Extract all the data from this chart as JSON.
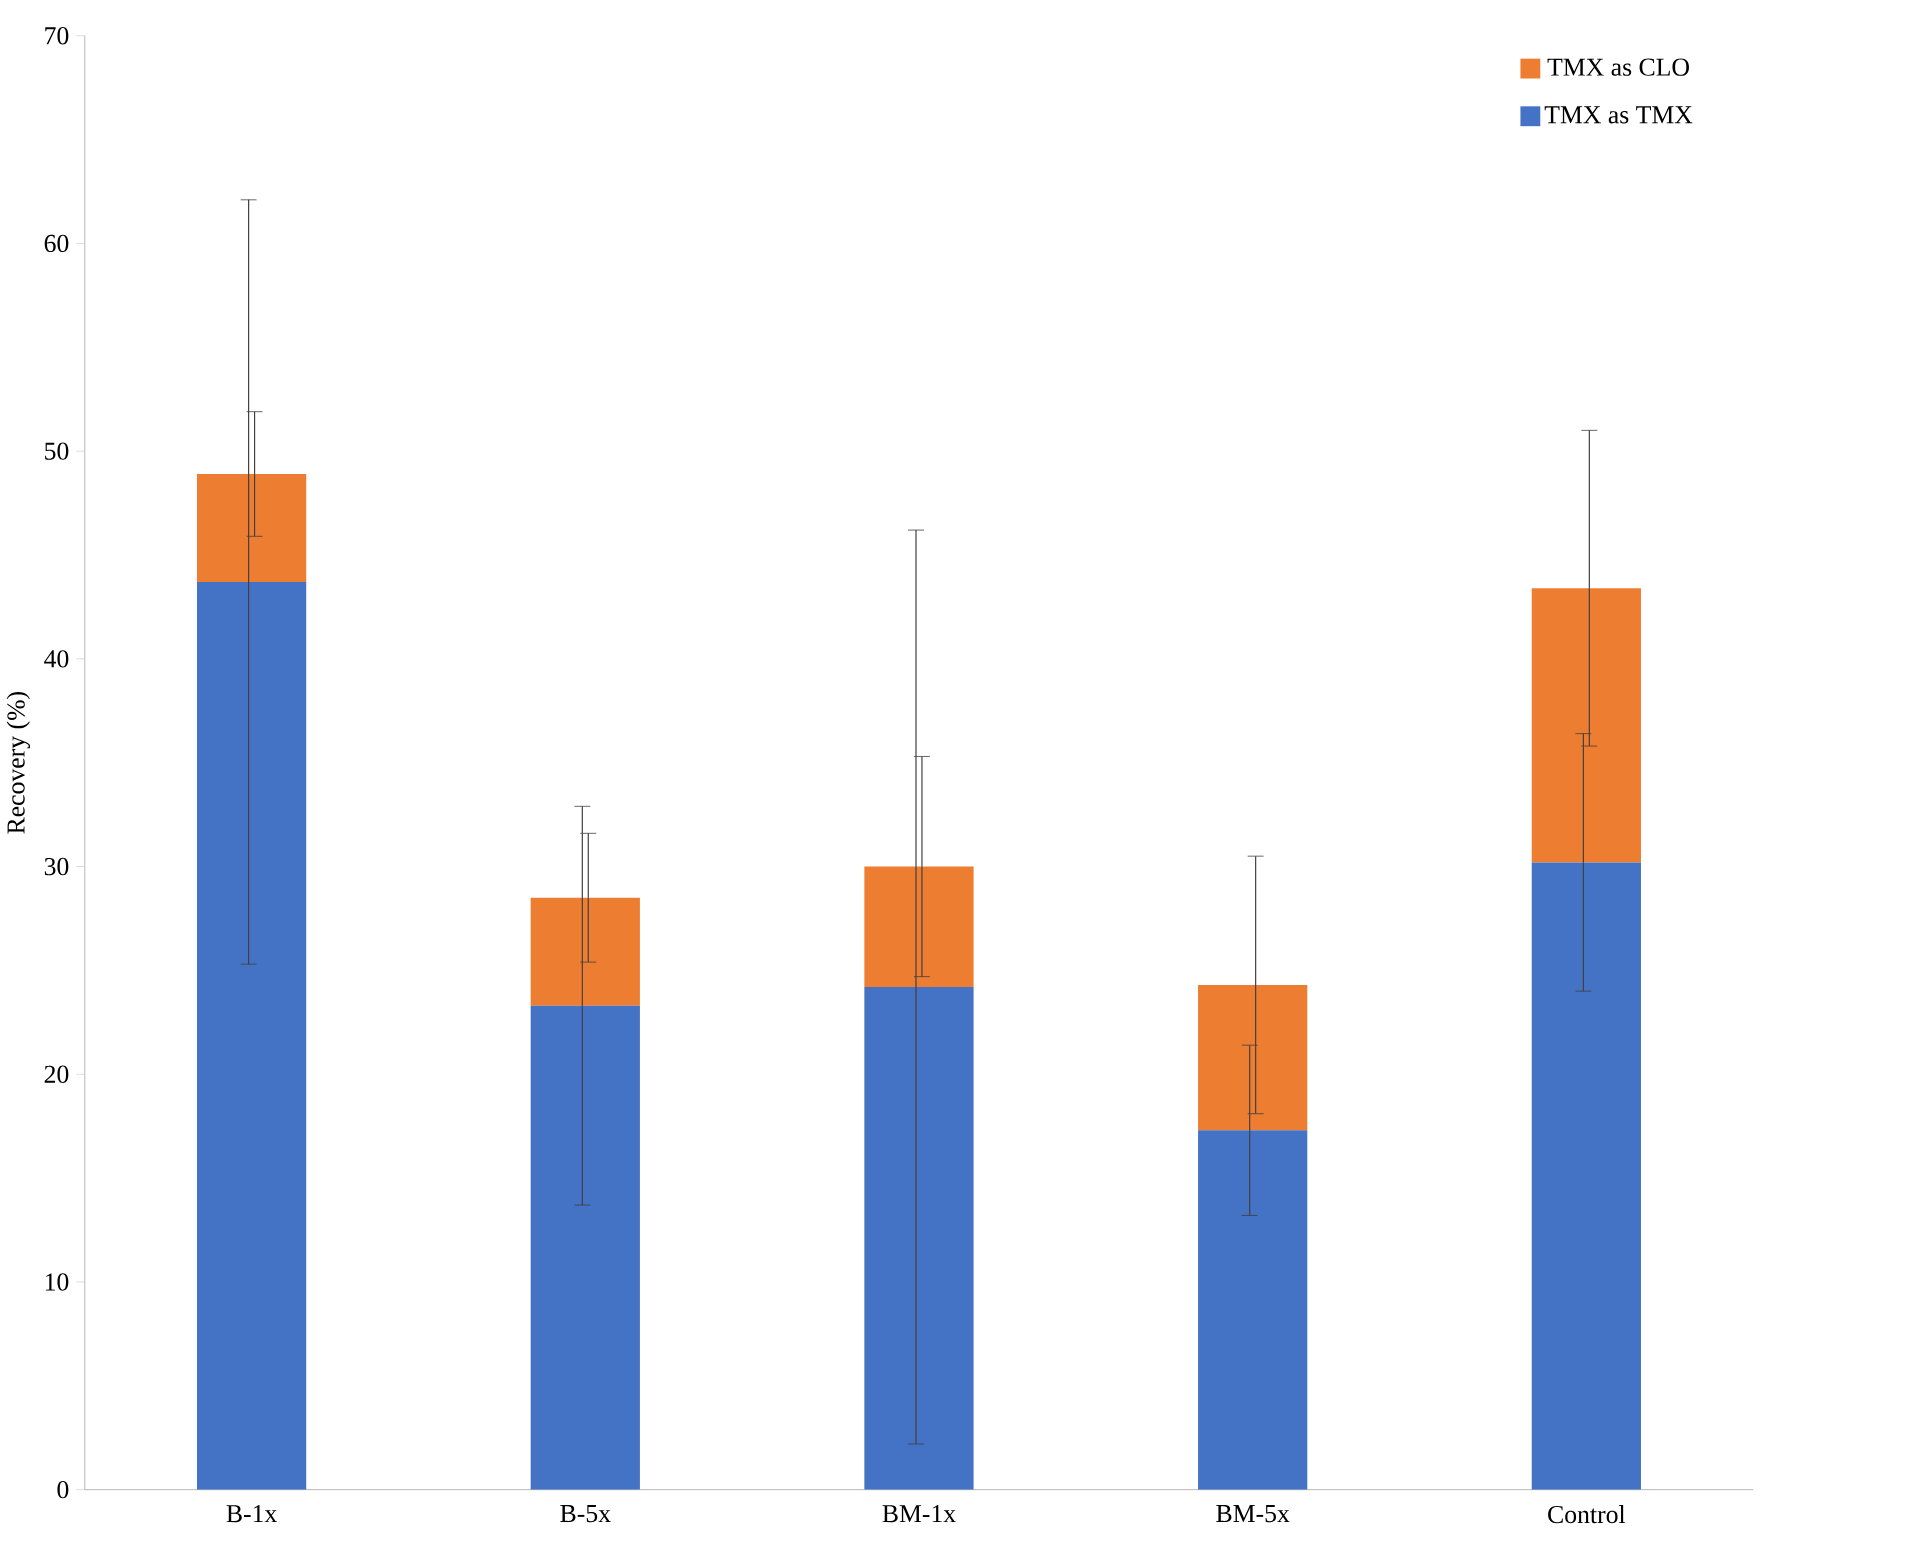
{
  "chart_data": {
    "type": "bar",
    "stacked": true,
    "ylabel": "Recovery (%)",
    "categories": [
      "B-1x",
      "B-5x",
      "BM-1x",
      "BM-5x",
      "Control"
    ],
    "series": [
      {
        "name": "TMX as TMX",
        "color": "#4472c4",
        "values": [
          43.7,
          23.3,
          24.2,
          17.3,
          30.2
        ],
        "errors": [
          18.4,
          9.6,
          22.0,
          4.1,
          6.2
        ]
      },
      {
        "name": "TMX as CLO",
        "color": "#ed7d31",
        "values": [
          5.2,
          5.2,
          5.8,
          7.0,
          13.2
        ],
        "errors": [
          3.0,
          3.1,
          5.3,
          6.2,
          7.6
        ]
      }
    ],
    "ylim": [
      0,
      70
    ],
    "yticks": [
      0,
      10,
      20,
      30,
      40,
      50,
      60,
      70
    ],
    "grid": false,
    "legend": "top right"
  }
}
